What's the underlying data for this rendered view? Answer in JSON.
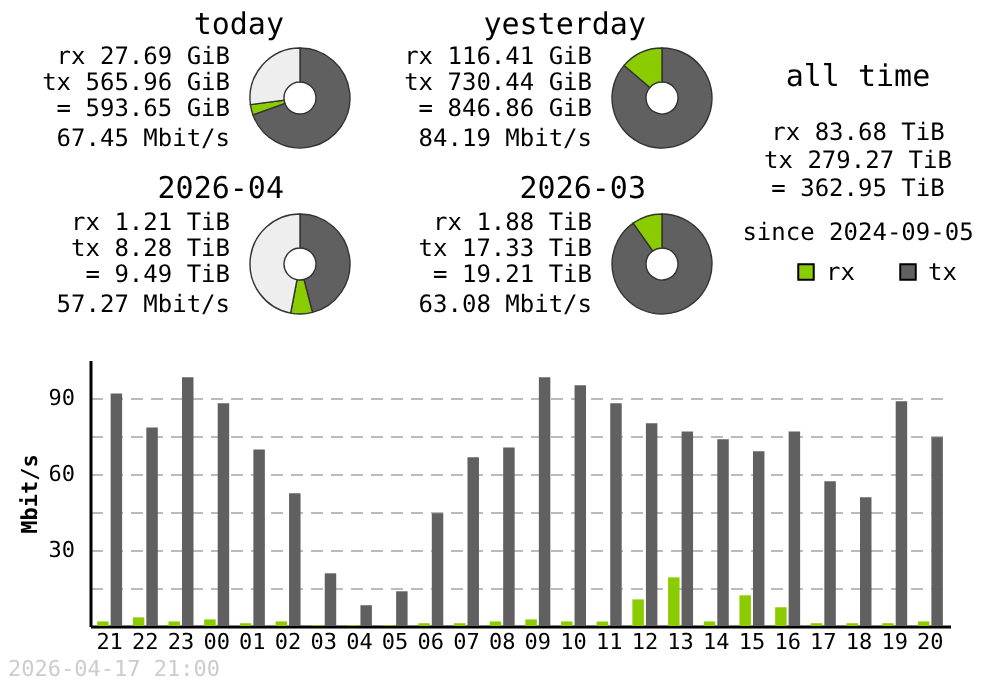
{
  "chart_data": [
    {
      "type": "donut",
      "title": "today",
      "categories": [
        null,
        null,
        null
      ],
      "values": [
        69.5,
        3.4,
        27.1
      ],
      "colors": [
        "#606060",
        "#8acc00",
        "#eeeeee"
      ],
      "annotations": [
        "rx 27.69 GiB",
        "tx 565.96 GiB",
        "= 593.65 GiB",
        "67.45 Mbit/s"
      ]
    },
    {
      "type": "donut",
      "title": "yesterday",
      "categories": [
        null,
        null
      ],
      "values": [
        86.3,
        13.7
      ],
      "colors": [
        "#606060",
        "#8acc00"
      ],
      "annotations": [
        "rx 116.41 GiB",
        "tx 730.44 GiB",
        "= 846.86 GiB",
        "84.19 Mbit/s"
      ]
    },
    {
      "type": "other",
      "title": "all time",
      "annotations": [
        "rx 83.68 TiB",
        "tx 279.27 TiB",
        "= 362.95 TiB",
        "since 2024-09-05"
      ]
    },
    {
      "type": "donut",
      "title": "2026-04",
      "categories": [
        null,
        null,
        null
      ],
      "values": [
        46,
        7,
        47
      ],
      "colors": [
        "#606060",
        "#8acc00",
        "#eeeeee"
      ],
      "annotations": [
        "rx 1.21 TiB",
        "tx 8.28 TiB",
        "= 9.49 TiB",
        "57.27 Mbit/s"
      ]
    },
    {
      "type": "donut",
      "title": "2026-03",
      "categories": [
        null,
        null
      ],
      "values": [
        90.2,
        9.8
      ],
      "colors": [
        "#606060",
        "#8acc00"
      ],
      "annotations": [
        "rx 1.88 TiB",
        "tx 17.33 TiB",
        "= 19.21 TiB",
        "63.08 Mbit/s"
      ]
    },
    {
      "type": "bar",
      "ylabel": "Mbit/s",
      "legend": "top right",
      "grid": "y",
      "categories": [
        "21",
        "22",
        "23",
        "00",
        "01",
        "02",
        "03",
        "04",
        "05",
        "06",
        "07",
        "08",
        "09",
        "10",
        "11",
        "12",
        "13",
        "14",
        "15",
        "16",
        "17",
        "18",
        "19",
        "20"
      ],
      "ylim": [
        0,
        105
      ],
      "yticks": [
        {
          "value": 15,
          "label": null
        },
        30,
        {
          "value": 45,
          "label": null
        },
        60,
        {
          "value": 75,
          "label": null
        },
        90
      ],
      "series": [
        {
          "name": "rx",
          "color": "#8acc00",
          "values": [
            1.8,
            3.4,
            1.8,
            2.6,
            1.1,
            1.8,
            0.3,
            0.3,
            0.3,
            1.1,
            1.1,
            1.8,
            2.6,
            1.8,
            1.8,
            10.5,
            19.2,
            1.8,
            12.1,
            7.4,
            1.1,
            1.1,
            1.1,
            1.8
          ]
        },
        {
          "name": "tx",
          "color": "#606060",
          "values": [
            91.8,
            78.4,
            98.2,
            87.9,
            69.7,
            52.4,
            20.8,
            8.2,
            13.7,
            44.5,
            66.6,
            70.5,
            98.2,
            95.0,
            87.9,
            80.0,
            76.8,
            73.7,
            69.0,
            76.8,
            57.1,
            50.8,
            88.7,
            74.5
          ]
        }
      ],
      "annotations": [
        "2026-04-17 21:00"
      ]
    }
  ]
}
